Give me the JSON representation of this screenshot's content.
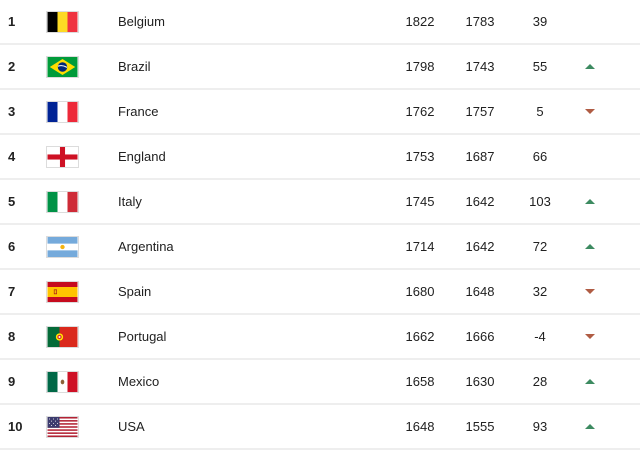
{
  "colors": {
    "up_arrow": "#3d8b61",
    "down_arrow": "#b05c44",
    "divider": "#eeeeee",
    "text": "#212121"
  },
  "table": {
    "rows": [
      {
        "rank": "1",
        "country": "Belgium",
        "flag": "belgium",
        "points": "1822",
        "prev_points": "1783",
        "change": "39",
        "trend": "none"
      },
      {
        "rank": "2",
        "country": "Brazil",
        "flag": "brazil",
        "points": "1798",
        "prev_points": "1743",
        "change": "55",
        "trend": "up"
      },
      {
        "rank": "3",
        "country": "France",
        "flag": "france",
        "points": "1762",
        "prev_points": "1757",
        "change": "5",
        "trend": "down"
      },
      {
        "rank": "4",
        "country": "England",
        "flag": "england",
        "points": "1753",
        "prev_points": "1687",
        "change": "66",
        "trend": "none"
      },
      {
        "rank": "5",
        "country": "Italy",
        "flag": "italy",
        "points": "1745",
        "prev_points": "1642",
        "change": "103",
        "trend": "up"
      },
      {
        "rank": "6",
        "country": "Argentina",
        "flag": "argentina",
        "points": "1714",
        "prev_points": "1642",
        "change": "72",
        "trend": "up"
      },
      {
        "rank": "7",
        "country": "Spain",
        "flag": "spain",
        "points": "1680",
        "prev_points": "1648",
        "change": "32",
        "trend": "down"
      },
      {
        "rank": "8",
        "country": "Portugal",
        "flag": "portugal",
        "points": "1662",
        "prev_points": "1666",
        "change": "-4",
        "trend": "down"
      },
      {
        "rank": "9",
        "country": "Mexico",
        "flag": "mexico",
        "points": "1658",
        "prev_points": "1630",
        "change": "28",
        "trend": "up"
      },
      {
        "rank": "10",
        "country": "USA",
        "flag": "usa",
        "points": "1648",
        "prev_points": "1555",
        "change": "93",
        "trend": "up"
      }
    ]
  }
}
